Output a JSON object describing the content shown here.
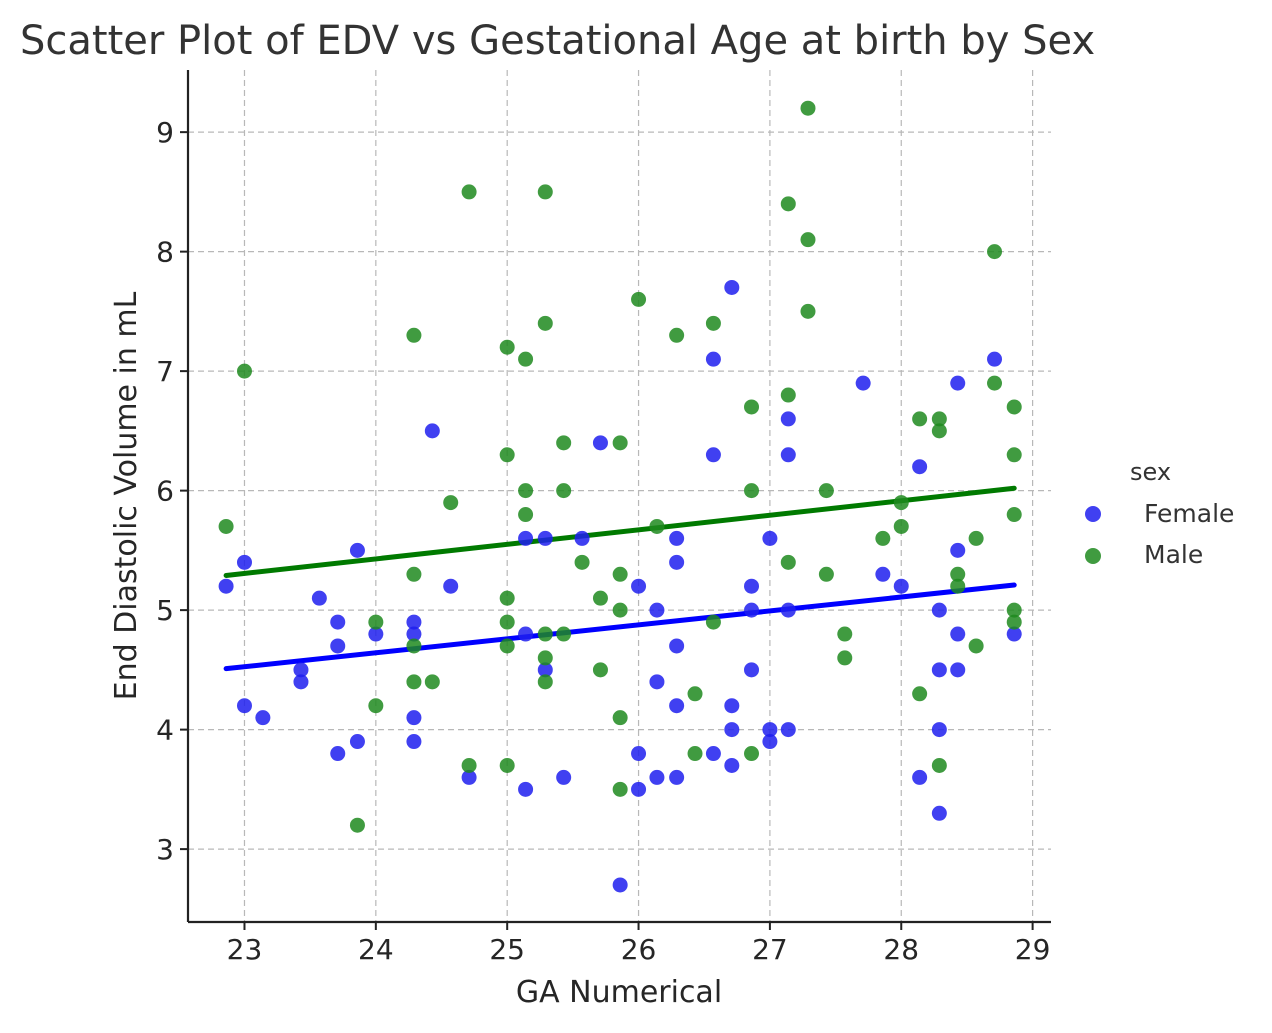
{
  "chart_data": {
    "type": "scatter",
    "title": "Scatter Plot of EDV vs Gestational Age at birth by Sex",
    "xlabel": "GA Numerical",
    "ylabel": "End Diastolic Volume in mL",
    "xlim": [
      22.57,
      29.14
    ],
    "ylim": [
      2.39,
      9.52
    ],
    "xticks": [
      23,
      24,
      25,
      26,
      27,
      28,
      29
    ],
    "yticks": [
      3,
      4,
      5,
      6,
      7,
      8,
      9
    ],
    "grid": true,
    "legend": {
      "title": "sex",
      "position": "right",
      "entries": [
        "Female",
        "Male"
      ]
    },
    "series": [
      {
        "name": "Female",
        "color": "#1f1fef",
        "points": [
          [
            22.86,
            5.2
          ],
          [
            23.0,
            5.4
          ],
          [
            23.0,
            4.2
          ],
          [
            23.14,
            4.1
          ],
          [
            23.43,
            4.5
          ],
          [
            23.43,
            4.4
          ],
          [
            23.57,
            5.1
          ],
          [
            23.71,
            4.9
          ],
          [
            23.71,
            4.7
          ],
          [
            23.71,
            3.8
          ],
          [
            23.86,
            5.5
          ],
          [
            23.86,
            3.9
          ],
          [
            24.0,
            4.8
          ],
          [
            24.29,
            4.9
          ],
          [
            24.29,
            4.8
          ],
          [
            24.29,
            4.1
          ],
          [
            24.29,
            3.9
          ],
          [
            24.43,
            6.5
          ],
          [
            24.57,
            5.2
          ],
          [
            24.71,
            3.6
          ],
          [
            25.14,
            5.6
          ],
          [
            25.14,
            4.8
          ],
          [
            25.14,
            3.5
          ],
          [
            25.29,
            5.6
          ],
          [
            25.29,
            4.5
          ],
          [
            25.43,
            3.6
          ],
          [
            25.57,
            5.6
          ],
          [
            25.71,
            6.4
          ],
          [
            25.86,
            2.7
          ],
          [
            26.0,
            5.2
          ],
          [
            26.0,
            3.8
          ],
          [
            26.0,
            3.5
          ],
          [
            26.14,
            5.0
          ],
          [
            26.14,
            4.4
          ],
          [
            26.14,
            3.6
          ],
          [
            26.29,
            5.6
          ],
          [
            26.29,
            5.4
          ],
          [
            26.29,
            4.7
          ],
          [
            26.29,
            4.2
          ],
          [
            26.29,
            3.6
          ],
          [
            26.57,
            7.1
          ],
          [
            26.57,
            6.3
          ],
          [
            26.57,
            3.8
          ],
          [
            26.71,
            7.7
          ],
          [
            26.71,
            4.2
          ],
          [
            26.71,
            4.0
          ],
          [
            26.71,
            3.7
          ],
          [
            26.86,
            5.2
          ],
          [
            26.86,
            5.0
          ],
          [
            26.86,
            4.5
          ],
          [
            27.0,
            5.6
          ],
          [
            27.0,
            4.0
          ],
          [
            27.0,
            3.9
          ],
          [
            27.14,
            6.6
          ],
          [
            27.14,
            6.3
          ],
          [
            27.14,
            5.0
          ],
          [
            27.14,
            4.0
          ],
          [
            27.71,
            6.9
          ],
          [
            27.86,
            5.3
          ],
          [
            28.0,
            5.2
          ],
          [
            28.14,
            6.2
          ],
          [
            28.14,
            3.6
          ],
          [
            28.29,
            5.0
          ],
          [
            28.29,
            4.5
          ],
          [
            28.29,
            4.0
          ],
          [
            28.29,
            3.3
          ],
          [
            28.43,
            6.9
          ],
          [
            28.43,
            5.5
          ],
          [
            28.43,
            4.8
          ],
          [
            28.43,
            4.5
          ],
          [
            28.71,
            7.1
          ],
          [
            28.86,
            4.8
          ]
        ],
        "trend": {
          "x": [
            22.86,
            28.86
          ],
          "y": [
            4.51,
            5.21
          ]
        }
      },
      {
        "name": "Male",
        "color": "#1f8a1f",
        "points": [
          [
            22.86,
            5.7
          ],
          [
            23.0,
            7.0
          ],
          [
            23.86,
            3.2
          ],
          [
            24.0,
            4.9
          ],
          [
            24.0,
            4.2
          ],
          [
            24.29,
            7.3
          ],
          [
            24.29,
            5.3
          ],
          [
            24.29,
            4.7
          ],
          [
            24.29,
            4.4
          ],
          [
            24.43,
            4.4
          ],
          [
            24.57,
            5.9
          ],
          [
            24.71,
            8.5
          ],
          [
            24.71,
            3.7
          ],
          [
            25.0,
            7.2
          ],
          [
            25.0,
            6.3
          ],
          [
            25.0,
            5.1
          ],
          [
            25.0,
            4.9
          ],
          [
            25.0,
            4.7
          ],
          [
            25.0,
            3.7
          ],
          [
            25.14,
            7.1
          ],
          [
            25.14,
            6.0
          ],
          [
            25.14,
            5.8
          ],
          [
            25.29,
            8.5
          ],
          [
            25.29,
            7.4
          ],
          [
            25.29,
            4.8
          ],
          [
            25.29,
            4.6
          ],
          [
            25.29,
            4.4
          ],
          [
            25.43,
            6.4
          ],
          [
            25.43,
            6.0
          ],
          [
            25.43,
            4.8
          ],
          [
            25.57,
            5.4
          ],
          [
            25.71,
            5.1
          ],
          [
            25.71,
            4.5
          ],
          [
            25.86,
            6.4
          ],
          [
            25.86,
            5.3
          ],
          [
            25.86,
            5.0
          ],
          [
            25.86,
            4.1
          ],
          [
            25.86,
            3.5
          ],
          [
            26.0,
            7.6
          ],
          [
            26.14,
            5.7
          ],
          [
            26.29,
            7.3
          ],
          [
            26.43,
            4.3
          ],
          [
            26.43,
            3.8
          ],
          [
            26.57,
            7.4
          ],
          [
            26.57,
            4.9
          ],
          [
            26.86,
            6.7
          ],
          [
            26.86,
            6.0
          ],
          [
            26.86,
            3.8
          ],
          [
            27.14,
            8.4
          ],
          [
            27.14,
            6.8
          ],
          [
            27.14,
            5.4
          ],
          [
            27.29,
            9.2
          ],
          [
            27.29,
            8.1
          ],
          [
            27.29,
            7.5
          ],
          [
            27.43,
            6.0
          ],
          [
            27.43,
            5.3
          ],
          [
            27.57,
            4.8
          ],
          [
            27.57,
            4.6
          ],
          [
            27.86,
            5.6
          ],
          [
            28.0,
            5.9
          ],
          [
            28.0,
            5.7
          ],
          [
            28.14,
            6.6
          ],
          [
            28.14,
            4.3
          ],
          [
            28.29,
            6.6
          ],
          [
            28.29,
            6.5
          ],
          [
            28.29,
            3.7
          ],
          [
            28.43,
            5.3
          ],
          [
            28.43,
            5.2
          ],
          [
            28.57,
            5.6
          ],
          [
            28.57,
            4.7
          ],
          [
            28.71,
            8.0
          ],
          [
            28.71,
            6.9
          ],
          [
            28.86,
            6.7
          ],
          [
            28.86,
            6.3
          ],
          [
            28.86,
            5.8
          ],
          [
            28.86,
            5.0
          ],
          [
            28.86,
            4.9
          ]
        ],
        "trend": {
          "x": [
            22.86,
            28.86
          ],
          "y": [
            5.29,
            6.02
          ]
        }
      }
    ]
  }
}
